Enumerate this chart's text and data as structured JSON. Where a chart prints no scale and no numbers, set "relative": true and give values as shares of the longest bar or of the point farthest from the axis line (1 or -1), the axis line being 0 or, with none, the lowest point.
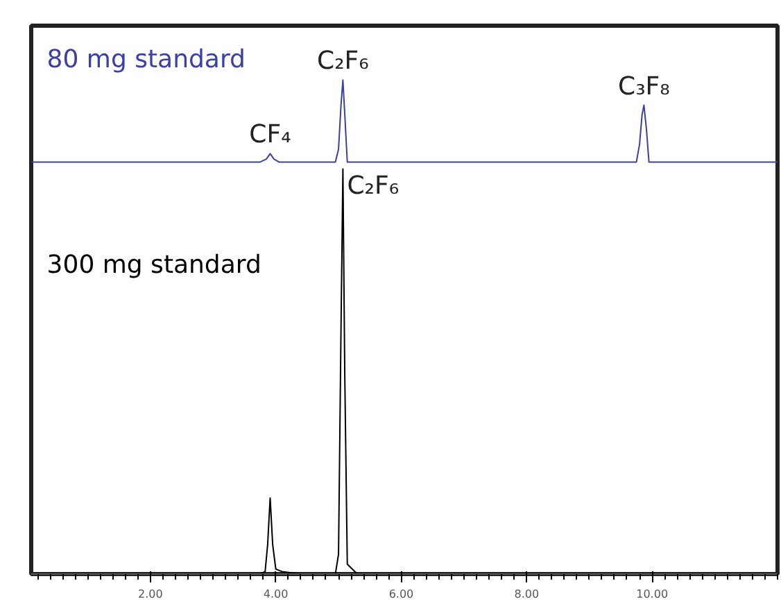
{
  "chart_data": {
    "type": "line",
    "relative": true,
    "tick_labels": "x",
    "grid": false,
    "marker": "none",
    "line_style": "solid",
    "xlim": [
      0.1,
      12.0
    ],
    "xticks": [
      {
        "value": 2,
        "label": "2.00"
      },
      {
        "value": 4,
        "label": "4.00"
      },
      {
        "value": 6,
        "label": "6.00"
      },
      {
        "value": 8,
        "label": "8.00"
      },
      {
        "value": 10,
        "label": "10.00"
      }
    ],
    "series": [
      {
        "name": "80 mg standard",
        "color": "#3b3fa8",
        "x": [
          0.1,
          3.75,
          3.85,
          3.91,
          3.97,
          4.05,
          4.95,
          5.0,
          5.04,
          5.07,
          5.1,
          5.14,
          9.75,
          9.8,
          9.84,
          9.87,
          9.91,
          9.95,
          12.0
        ],
        "values": [
          0.834,
          0.834,
          0.84,
          0.851,
          0.84,
          0.834,
          0.834,
          0.86,
          0.95,
          1.0,
          0.93,
          0.834,
          0.834,
          0.87,
          0.93,
          0.949,
          0.9,
          0.834,
          0.834
        ]
      },
      {
        "name": "300 mg standard",
        "color": "#000000",
        "x": [
          0.1,
          3.75,
          3.83,
          3.87,
          3.91,
          3.95,
          4.0,
          4.1,
          4.4,
          4.95,
          5.0,
          5.04,
          5.07,
          5.1,
          5.14,
          5.3,
          12.0
        ],
        "values": [
          0,
          0,
          0.005,
          0.06,
          0.154,
          0.06,
          0.01,
          0.005,
          0,
          0,
          0.04,
          0.5,
          0.82,
          0.4,
          0.02,
          0,
          0
        ]
      }
    ],
    "annotations": [
      {
        "text": "CF₄",
        "x": 3.91,
        "y": 0.851
      },
      {
        "text": "C₂F₆",
        "x": 5.07,
        "y": 1.0
      },
      {
        "text": "C₃F₈",
        "x": 9.87,
        "y": 0.949
      },
      {
        "text": "C₂F₆",
        "x": 5.07,
        "y": 0.82
      }
    ]
  }
}
